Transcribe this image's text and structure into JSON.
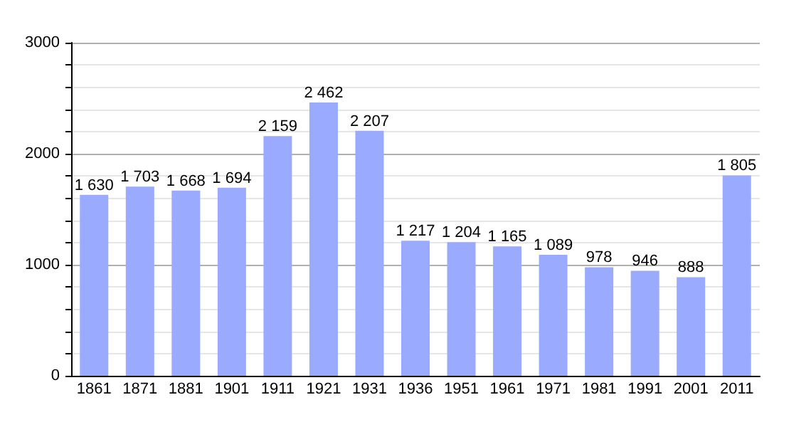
{
  "chart_data": {
    "type": "bar",
    "categories": [
      "1861",
      "1871",
      "1881",
      "1901",
      "1911",
      "1921",
      "1931",
      "1936",
      "1951",
      "1961",
      "1971",
      "1981",
      "1991",
      "2001",
      "2011"
    ],
    "values": [
      1630,
      1703,
      1668,
      1694,
      2159,
      2462,
      2207,
      1217,
      1204,
      1165,
      1089,
      978,
      946,
      888,
      1805
    ],
    "value_labels": [
      "1 630",
      "1 703",
      "1 668",
      "1 694",
      "2 159",
      "2 462",
      "2 207",
      "1 217",
      "1 204",
      "1 165",
      "1 089",
      "978",
      "946",
      "888",
      "1 805"
    ],
    "color": "#99aaff",
    "ylim": [
      0,
      3000
    ],
    "yticks": [
      0,
      {
        "value": 200,
        "label": null
      },
      {
        "value": 400,
        "label": null
      },
      {
        "value": 600,
        "label": null
      },
      {
        "value": 800,
        "label": null
      },
      1000,
      {
        "value": 1200,
        "label": null
      },
      {
        "value": 1400,
        "label": null
      },
      {
        "value": 1600,
        "label": null
      },
      {
        "value": 1800,
        "label": null
      },
      2000,
      {
        "value": 2200,
        "label": null
      },
      {
        "value": 2400,
        "label": null
      },
      {
        "value": 2600,
        "label": null
      },
      {
        "value": 2800,
        "label": null
      },
      3000
    ],
    "grid": "y"
  }
}
